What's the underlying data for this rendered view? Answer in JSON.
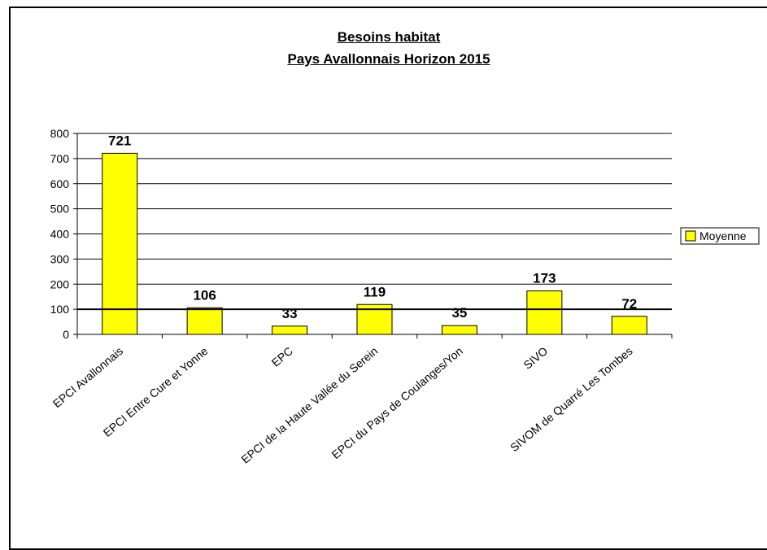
{
  "chart_data": {
    "type": "bar",
    "title_lines": [
      "Besoins habitat ",
      "Pays Avallonnais Horizon 2015"
    ],
    "categories": [
      "EPCI Avallonnais",
      "EPCI Entre Cure et Yonne",
      "EPC",
      "EPCI de la Haute Vallée du Serein",
      "EPCI du Pays de Coulanges/Yon",
      "SIVO",
      "SIVOM de Quarré Les Tombes"
    ],
    "series": [
      {
        "name": "Moyenne",
        "values": [
          721,
          106,
          33,
          119,
          35,
          173,
          72
        ],
        "color": "#ffff00"
      }
    ],
    "data_labels": [
      "721",
      "106",
      "33",
      "119",
      "35",
      "173",
      "72"
    ],
    "yticks": [
      "0",
      "100",
      "200",
      "300",
      "400",
      "500",
      "600",
      "700",
      "800"
    ],
    "ylim": [
      0,
      800
    ],
    "reference_line": 100,
    "grid": true,
    "legend": "right"
  }
}
